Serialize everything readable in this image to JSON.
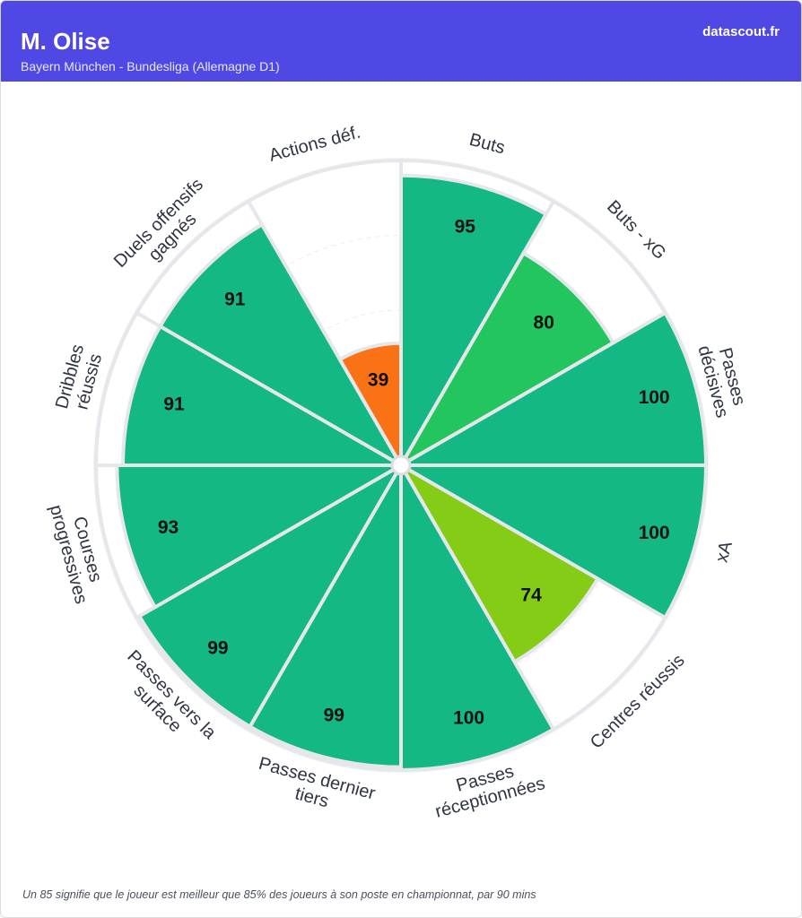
{
  "header": {
    "player": "M. Olise",
    "team_league": "Bayern München - Bundesliga (Allemagne D1)",
    "brand": "datascout.fr",
    "background": "#5048e5"
  },
  "footnote": "Un 85 signifie que le joueur est meilleur que 85% des joueurs à son poste en championnat, par 90 mins",
  "chart_data": {
    "type": "pie",
    "variant": "polar-percentile",
    "scale": [
      0,
      100
    ],
    "slices": [
      {
        "label": [
          "Buts"
        ],
        "value": 95,
        "color": "#13b884"
      },
      {
        "label": [
          "Buts - xG"
        ],
        "value": 80,
        "color": "#22c55e"
      },
      {
        "label": [
          "Passes",
          "décisives"
        ],
        "value": 100,
        "color": "#13b884"
      },
      {
        "label": [
          "xA"
        ],
        "value": 100,
        "color": "#13b884"
      },
      {
        "label": [
          "Centres réussis"
        ],
        "value": 74,
        "color": "#84cc16"
      },
      {
        "label": [
          "Passes",
          "réceptionnées"
        ],
        "value": 100,
        "color": "#13b884"
      },
      {
        "label": [
          "Passes dernier",
          "tiers"
        ],
        "value": 99,
        "color": "#13b884"
      },
      {
        "label": [
          "Passes vers la",
          "surface"
        ],
        "value": 99,
        "color": "#13b884"
      },
      {
        "label": [
          "Courses",
          "progressives"
        ],
        "value": 93,
        "color": "#13b884"
      },
      {
        "label": [
          "Dribbles",
          "réussis"
        ],
        "value": 91,
        "color": "#13b884"
      },
      {
        "label": [
          "Duels offensifs",
          "gagnés"
        ],
        "value": 91,
        "color": "#13b884"
      },
      {
        "label": [
          "Actions déf."
        ],
        "value": 39,
        "color": "#f97316"
      }
    ]
  }
}
